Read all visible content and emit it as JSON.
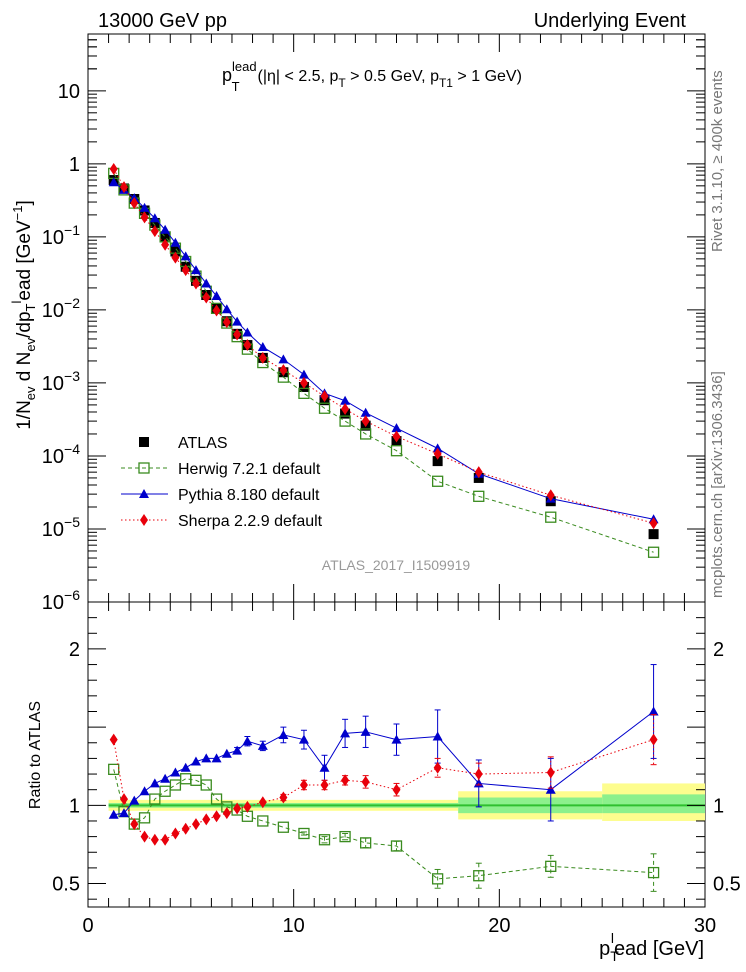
{
  "header": {
    "left": "13000 GeV pp",
    "right": "Underlying Event"
  },
  "side_labels": {
    "top": "Rivet 3.1.10, ≥ 400k events",
    "bottom": "mcplots.cern.ch [arXiv:1306.3436]"
  },
  "chart_data": [
    {
      "type": "line",
      "panel": "main",
      "scale": "log",
      "title": {
        "main": "p",
        "sup": "lead",
        "sub": "T",
        "cuts": "(|η| < 2.5, p",
        "cut1_sub": "T",
        "cut1_rest": " > 0.5 GeV, p",
        "cut2_sub": "T1",
        "cut2_rest": " > 1 GeV)"
      },
      "ylabel": "1/N_ev d N_ev/dp_T^lead [GeV^-1]",
      "ylim": [
        1e-06,
        60
      ],
      "xlim": [
        0,
        30
      ],
      "y_ticks": [
        {
          "value": 10,
          "base": "10",
          "exp": ""
        },
        {
          "value": 1,
          "base": "1",
          "exp": ""
        },
        {
          "value": 0.1,
          "base": "10",
          "exp": "−1"
        },
        {
          "value": 0.01,
          "base": "10",
          "exp": "−2"
        },
        {
          "value": 0.001,
          "base": "10",
          "exp": "−3"
        },
        {
          "value": 0.0001,
          "base": "10",
          "exp": "−4"
        },
        {
          "value": 1e-05,
          "base": "10",
          "exp": "−5"
        },
        {
          "value": 1e-06,
          "base": "10",
          "exp": "−6"
        }
      ],
      "watermark": "ATLAS_2017_I1509919",
      "legend": [
        "ATLAS",
        "Herwig 7.2.1 default",
        "Pythia 8.180 default",
        "Sherpa 2.2.9 default"
      ],
      "x": [
        1.25,
        1.75,
        2.25,
        2.75,
        3.25,
        3.75,
        4.25,
        4.75,
        5.25,
        5.75,
        6.25,
        6.75,
        7.25,
        7.75,
        8.5,
        9.5,
        10.5,
        11.5,
        12.5,
        13.5,
        15.0,
        17.0,
        19.0,
        22.5,
        27.5
      ],
      "series": [
        {
          "name": "ATLAS",
          "values": [
            0.6,
            0.46,
            0.33,
            0.23,
            0.155,
            0.1,
            0.063,
            0.039,
            0.025,
            0.016,
            0.0105,
            0.007,
            0.0047,
            0.0033,
            0.0022,
            0.0014,
            0.00088,
            0.00058,
            0.00038,
            0.00026,
            0.00016,
            8.5e-05,
            5e-05,
            2.4e-05,
            8.5e-06
          ]
        },
        {
          "name": "Herwig 7.2.1 default",
          "values": [
            0.74,
            0.44,
            0.29,
            0.21,
            0.145,
            0.1,
            0.07,
            0.046,
            0.029,
            0.018,
            0.0105,
            0.0066,
            0.0043,
            0.0029,
            0.0019,
            0.0012,
            0.00072,
            0.00045,
            0.0003,
            0.0002,
            0.000118,
            4.5e-05,
            2.8e-05,
            1.45e-05,
            4.8e-06
          ]
        },
        {
          "name": "Pythia 8.180 default",
          "values": [
            0.56,
            0.44,
            0.34,
            0.25,
            0.18,
            0.125,
            0.083,
            0.054,
            0.035,
            0.023,
            0.0155,
            0.0102,
            0.0069,
            0.0049,
            0.0031,
            0.0021,
            0.0013,
            0.00072,
            0.00057,
            0.00039,
            0.00024,
            0.000127,
            5.7e-05,
            2.6e-05,
            1.36e-05
          ]
        },
        {
          "name": "Sherpa 2.2.9 default",
          "values": [
            0.85,
            0.48,
            0.29,
            0.185,
            0.12,
            0.078,
            0.052,
            0.035,
            0.023,
            0.0148,
            0.0098,
            0.0068,
            0.0046,
            0.0033,
            0.0022,
            0.0015,
            0.001,
            0.00066,
            0.00044,
            0.0003,
            0.000185,
            0.000107,
            6e-05,
            2.9e-05,
            1.2e-05
          ]
        }
      ]
    },
    {
      "type": "line",
      "panel": "ratio",
      "scale": "linear",
      "ylabel": "Ratio to ATLAS",
      "xlabel": "p_T^lead [GeV]",
      "xlabel_parts": {
        "main": "p",
        "sub": "T",
        "sup": "l",
        "rest": "ead [GeV]"
      },
      "ylim": [
        0.35,
        2.3
      ],
      "xlim": [
        0,
        30
      ],
      "x_ticks": [
        0,
        10,
        20,
        30
      ],
      "y_ticks": [
        0.5,
        1,
        2
      ],
      "band": {
        "segments": [
          {
            "x": [
              1,
              18
            ],
            "inner": [
              0.985,
              1.015
            ],
            "outer": [
              0.965,
              1.035
            ]
          },
          {
            "x": [
              18,
              25
            ],
            "inner": [
              0.95,
              1.05
            ],
            "outer": [
              0.91,
              1.09
            ]
          },
          {
            "x": [
              25,
              30
            ],
            "inner": [
              0.95,
              1.07
            ],
            "outer": [
              0.9,
              1.14
            ]
          }
        ]
      },
      "x": [
        1.25,
        1.75,
        2.25,
        2.75,
        3.25,
        3.75,
        4.25,
        4.75,
        5.25,
        5.75,
        6.25,
        6.75,
        7.25,
        7.75,
        8.5,
        9.5,
        10.5,
        11.5,
        12.5,
        13.5,
        15.0,
        17.0,
        19.0,
        22.5,
        27.5
      ],
      "series": [
        {
          "name": "Herwig 7.2.1 default",
          "values": [
            1.23,
            0.96,
            0.88,
            0.92,
            1.04,
            1.09,
            1.13,
            1.17,
            1.16,
            1.13,
            1.04,
            0.99,
            0.97,
            0.93,
            0.9,
            0.86,
            0.82,
            0.78,
            0.8,
            0.76,
            0.74,
            0.53,
            0.55,
            0.61,
            0.57
          ],
          "errors": [
            0,
            0,
            0,
            0,
            0,
            0,
            0,
            0,
            0,
            0,
            0,
            0,
            0,
            0,
            0,
            0,
            0.01,
            0.02,
            0.02,
            0.03,
            0.03,
            0.06,
            0.08,
            0.07,
            0.12
          ]
        },
        {
          "name": "Pythia 8.180 default",
          "values": [
            0.94,
            0.95,
            1.03,
            1.09,
            1.14,
            1.17,
            1.21,
            1.24,
            1.28,
            1.3,
            1.3,
            1.33,
            1.35,
            1.41,
            1.38,
            1.45,
            1.42,
            1.24,
            1.46,
            1.47,
            1.42,
            1.44,
            1.14,
            1.1,
            1.6
          ],
          "errors": [
            0,
            0,
            0,
            0,
            0,
            0,
            0,
            0,
            0,
            0,
            0,
            0,
            0.02,
            0.03,
            0.03,
            0.05,
            0.06,
            0.08,
            0.09,
            0.1,
            0.1,
            0.17,
            0.15,
            0.2,
            0.3
          ]
        },
        {
          "name": "Sherpa 2.2.9 default",
          "values": [
            1.42,
            1.04,
            0.88,
            0.8,
            0.78,
            0.78,
            0.82,
            0.85,
            0.88,
            0.91,
            0.93,
            0.95,
            0.98,
            0.99,
            1.02,
            1.05,
            1.13,
            1.13,
            1.16,
            1.15,
            1.1,
            1.24,
            1.2,
            1.21,
            1.42
          ],
          "errors": [
            0,
            0,
            0,
            0,
            0,
            0,
            0,
            0,
            0,
            0,
            0,
            0,
            0,
            0,
            0,
            0.02,
            0.03,
            0.03,
            0.03,
            0.04,
            0.04,
            0.06,
            0.07,
            0.1,
            0.16
          ]
        }
      ]
    }
  ],
  "colors": {
    "atlas": "#000000",
    "herwig": "#3a8b1f",
    "pythia": "#0000cc",
    "sherpa": "#e8000b",
    "band_outer": "#fdfd8e",
    "band_inner": "#8cf08c",
    "ratio_line": "#2fbf2f"
  }
}
